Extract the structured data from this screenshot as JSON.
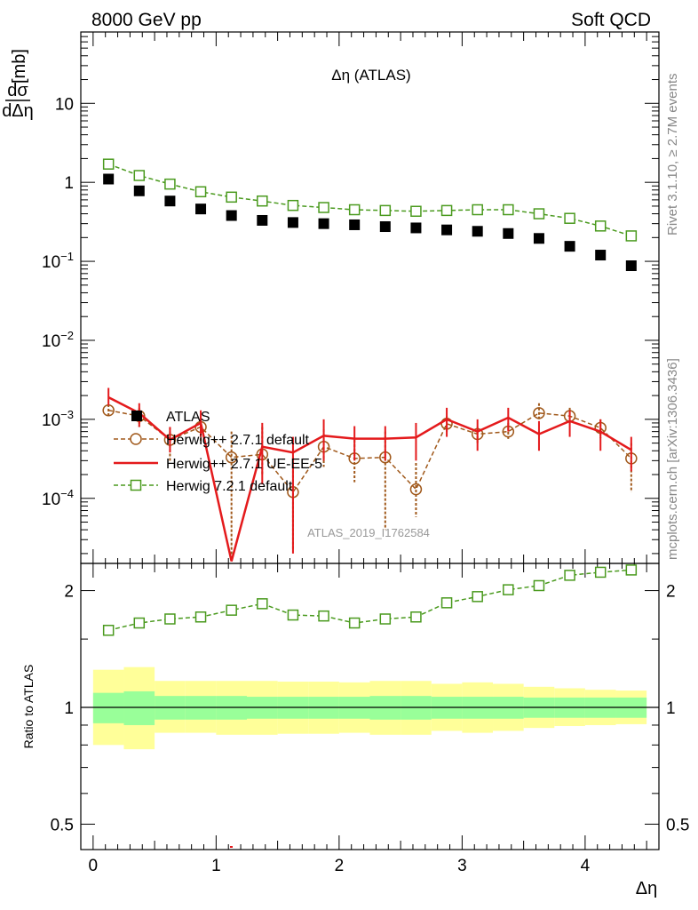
{
  "header": {
    "left": "8000 GeV pp",
    "right": "Soft QCD"
  },
  "side_text": {
    "rivet": "Rivet 3.1.10, ≥ 2.7M events",
    "mcplots": "mcplots.cern.ch [arXiv:1306.3436]"
  },
  "chart_data": [
    {
      "type": "scatter",
      "title": "Δη (ATLAS)",
      "ylabel_num": "dσ",
      "ylabel_den": "dΔη",
      "ylabel_unit": "[mb]",
      "xlabel": "Δη",
      "yscale": "log",
      "xlim": [
        -0.1,
        4.6
      ],
      "ylim": [
        1.5e-05,
        80
      ],
      "ytick_labels": [
        "10",
        "1",
        "10−1",
        "10−2",
        "10−3",
        "10−4"
      ],
      "watermark": "ATLAS_2019_I1762584",
      "legend_position": "center-left",
      "x": [
        0.125,
        0.375,
        0.625,
        0.875,
        1.125,
        1.375,
        1.625,
        1.875,
        2.125,
        2.375,
        2.625,
        2.875,
        3.125,
        3.375,
        3.625,
        3.875,
        4.125,
        4.375
      ],
      "series": [
        {
          "name": "ATLAS",
          "style": "marker-square",
          "color": "#000000",
          "values": [
            1.1,
            0.78,
            0.58,
            0.46,
            0.38,
            0.33,
            0.31,
            0.3,
            0.29,
            0.275,
            0.265,
            0.25,
            0.24,
            0.225,
            0.195,
            0.155,
            0.12,
            0.088
          ]
        },
        {
          "name": "Herwig++ 2.7.1 default",
          "style": "dashed-open-circle",
          "color": "#a0581a",
          "values": [
            0.0013,
            0.0011,
            0.00055,
            0.0008,
            0.00033,
            0.00036,
            0.00012,
            0.00045,
            0.00032,
            0.00033,
            0.00013,
            0.00088,
            0.00065,
            0.0007,
            0.0012,
            0.0011,
            0.00078,
            0.00032
          ],
          "err_low": [
            0.00105,
            0.0008,
            0.0003,
            0.0005,
            1.8e-05,
            0.0002,
            2.2e-05,
            0.00025,
            0.00016,
            4e-05,
            5.8e-05,
            0.00068,
            0.0005,
            0.00056,
            0.00098,
            0.00088,
            0.00058,
            0.00012
          ],
          "err_high": [
            0.00155,
            0.0014,
            0.0008,
            0.0011,
            0.0007,
            0.0008,
            0.00033,
            0.00075,
            0.00055,
            0.0007,
            0.00028,
            0.0011,
            0.0008,
            0.0009,
            0.0016,
            0.0014,
            0.001,
            0.0005
          ]
        },
        {
          "name": "Herwig++ 2.7.1 UE-EE-5",
          "style": "solid-line",
          "color": "#e41a1c",
          "values": [
            0.0019,
            0.0012,
            0.00055,
            0.0009,
            1.6e-05,
            0.00045,
            0.00038,
            0.00062,
            0.00057,
            0.00057,
            0.00059,
            0.001,
            0.0007,
            0.00105,
            0.00065,
            0.00095,
            0.0007,
            0.00041
          ],
          "err_low": [
            0.0015,
            0.0008,
            0.00038,
            0.0006,
            1.6e-05,
            0.00015,
            2e-05,
            0.0003,
            0.0003,
            0.0003,
            0.0003,
            0.0006,
            0.0004,
            0.0007,
            0.0004,
            0.0006,
            0.0004,
            0.00022
          ],
          "err_high": [
            0.0025,
            0.0016,
            0.0008,
            0.0013,
            1.6e-05,
            0.0009,
            0.0006,
            0.001,
            0.00082,
            0.00082,
            0.0009,
            0.0014,
            0.001,
            0.0014,
            0.00095,
            0.0013,
            0.001,
            0.0006
          ]
        },
        {
          "name": "Herwig 7.2.1 default",
          "style": "dashed-open-square",
          "color": "#4a9a1e",
          "values": [
            1.7,
            1.22,
            0.95,
            0.76,
            0.65,
            0.58,
            0.51,
            0.48,
            0.45,
            0.44,
            0.43,
            0.44,
            0.45,
            0.45,
            0.4,
            0.35,
            0.28,
            0.21
          ]
        }
      ]
    },
    {
      "type": "line",
      "ylabel": "Ratio to ATLAS",
      "xlabel": "Δη",
      "yscale": "log",
      "xlim": [
        -0.1,
        4.6
      ],
      "ylim": [
        0.43,
        2.35
      ],
      "xtick_labels": [
        "0",
        "1",
        "2",
        "3",
        "4"
      ],
      "ytick_labels": [
        "2",
        "1",
        "0.5"
      ],
      "bin_edges": [
        0,
        0.25,
        0.5,
        0.75,
        1.0,
        1.25,
        1.5,
        1.75,
        2.0,
        2.25,
        2.5,
        2.75,
        3.0,
        3.25,
        3.5,
        3.75,
        4.0,
        4.25,
        4.5
      ],
      "band_inner": {
        "color": "#99ff99",
        "low": [
          0.91,
          0.9,
          0.93,
          0.93,
          0.93,
          0.935,
          0.935,
          0.935,
          0.935,
          0.93,
          0.93,
          0.935,
          0.935,
          0.935,
          0.94,
          0.94,
          0.94,
          0.94
        ],
        "high": [
          1.09,
          1.1,
          1.07,
          1.07,
          1.07,
          1.065,
          1.065,
          1.065,
          1.065,
          1.07,
          1.07,
          1.065,
          1.065,
          1.065,
          1.06,
          1.06,
          1.06,
          1.06
        ]
      },
      "band_outer": {
        "color": "#ffff99",
        "low": [
          0.8,
          0.78,
          0.86,
          0.86,
          0.85,
          0.85,
          0.855,
          0.855,
          0.86,
          0.85,
          0.85,
          0.87,
          0.86,
          0.87,
          0.885,
          0.895,
          0.9,
          0.905
        ],
        "high": [
          1.25,
          1.27,
          1.17,
          1.17,
          1.17,
          1.17,
          1.165,
          1.165,
          1.16,
          1.17,
          1.17,
          1.15,
          1.16,
          1.15,
          1.13,
          1.12,
          1.11,
          1.105
        ]
      },
      "series": [
        {
          "name": "Herwig 7.2.1 default",
          "style": "dashed-open-square",
          "color": "#4a9a1e",
          "values": [
            1.58,
            1.65,
            1.69,
            1.71,
            1.78,
            1.85,
            1.73,
            1.72,
            1.65,
            1.69,
            1.71,
            1.86,
            1.93,
            2.01,
            2.06,
            2.19,
            2.23,
            2.26
          ]
        }
      ]
    }
  ]
}
